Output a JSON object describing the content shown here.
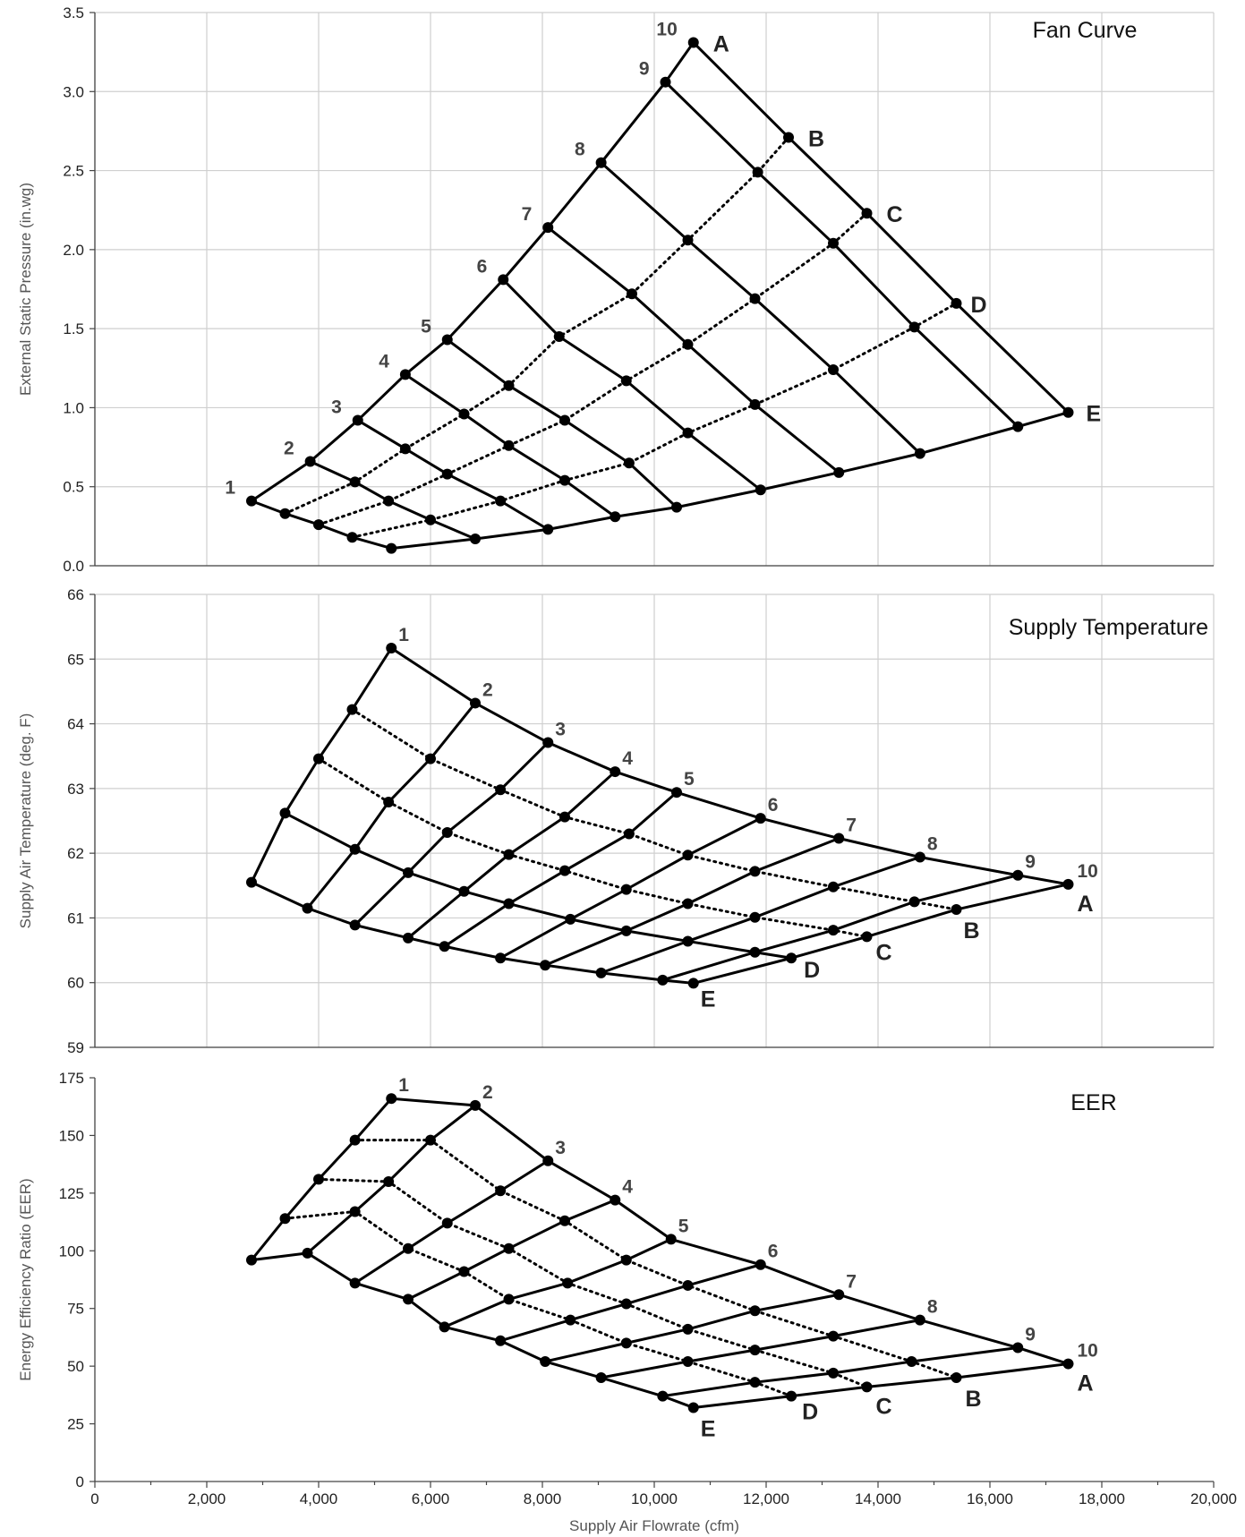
{
  "chart_data": [
    {
      "type": "line",
      "title": "Fan Curve",
      "ylabel": "External Static Pressure (in.wg)",
      "xlabel": "",
      "xlim": [
        0,
        20000
      ],
      "ylim": [
        0,
        3.5
      ],
      "yticks": [
        "0.0",
        "0.5",
        "1.0",
        "1.5",
        "2.0",
        "2.5",
        "3.0",
        "3.5"
      ],
      "grid": true,
      "row_labels": [
        "A",
        "B",
        "C",
        "D",
        "E"
      ],
      "column_labels": [
        "1",
        "2",
        "3",
        "4",
        "5",
        "6",
        "7",
        "8",
        "9",
        "10"
      ],
      "grid_points": {
        "A": [
          [
            2800,
            0.41
          ],
          [
            3850,
            0.66
          ],
          [
            4700,
            0.92
          ],
          [
            5550,
            1.21
          ],
          [
            6300,
            1.43
          ],
          [
            7300,
            1.81
          ],
          [
            8100,
            2.14
          ],
          [
            9050,
            2.55
          ],
          [
            10200,
            3.06
          ],
          [
            10700,
            3.31
          ]
        ],
        "B": [
          [
            3400,
            0.33
          ],
          [
            4650,
            0.53
          ],
          [
            5550,
            0.74
          ],
          [
            6600,
            0.96
          ],
          [
            7400,
            1.14
          ],
          [
            8300,
            1.45
          ],
          [
            9600,
            1.72
          ],
          [
            10600,
            2.06
          ],
          [
            11850,
            2.49
          ],
          [
            12400,
            2.71
          ]
        ],
        "C": [
          [
            4000,
            0.26
          ],
          [
            5250,
            0.41
          ],
          [
            6300,
            0.58
          ],
          [
            7400,
            0.76
          ],
          [
            8400,
            0.92
          ],
          [
            9500,
            1.17
          ],
          [
            10600,
            1.4
          ],
          [
            11800,
            1.69
          ],
          [
            13200,
            2.04
          ],
          [
            13800,
            2.23
          ]
        ],
        "D": [
          [
            4600,
            0.18
          ],
          [
            6000,
            0.29
          ],
          [
            7250,
            0.41
          ],
          [
            8400,
            0.54
          ],
          [
            9550,
            0.65
          ],
          [
            10600,
            0.84
          ],
          [
            11800,
            1.02
          ],
          [
            13200,
            1.24
          ],
          [
            14650,
            1.51
          ],
          [
            15400,
            1.66
          ]
        ],
        "E": [
          [
            5300,
            0.11
          ],
          [
            6800,
            0.17
          ],
          [
            8100,
            0.23
          ],
          [
            9300,
            0.31
          ],
          [
            10400,
            0.37
          ],
          [
            11900,
            0.48
          ],
          [
            13300,
            0.59
          ],
          [
            14750,
            0.71
          ],
          [
            16500,
            0.88
          ],
          [
            17400,
            0.97
          ]
        ]
      },
      "column_line_style": "solid",
      "row_line_styles": {
        "A": "solid",
        "B": "dotted",
        "C": "dotted",
        "D": "dotted",
        "E": "solid"
      }
    },
    {
      "type": "line",
      "title": "Supply Temperature",
      "ylabel": "Supply Air Temperature (deg. F)",
      "xlabel": "",
      "xlim": [
        0,
        20000
      ],
      "ylim": [
        59,
        66
      ],
      "yticks": [
        "59",
        "60",
        "61",
        "62",
        "63",
        "64",
        "65",
        "66"
      ],
      "grid": true,
      "row_labels": [
        "A",
        "B",
        "C",
        "D",
        "E"
      ],
      "column_labels": [
        "1",
        "2",
        "3",
        "4",
        "5",
        "6",
        "7",
        "8",
        "9",
        "10"
      ],
      "grid_points": {
        "A": [
          [
            5300,
            65.17
          ],
          [
            6800,
            64.32
          ],
          [
            8100,
            63.71
          ],
          [
            9300,
            63.26
          ],
          [
            10400,
            62.94
          ],
          [
            11900,
            62.54
          ],
          [
            13300,
            62.23
          ],
          [
            14750,
            61.94
          ],
          [
            16500,
            61.66
          ],
          [
            17400,
            61.52
          ]
        ],
        "B": [
          [
            4600,
            64.22
          ],
          [
            6000,
            63.46
          ],
          [
            7250,
            62.98
          ],
          [
            8400,
            62.56
          ],
          [
            9550,
            62.3
          ],
          [
            10600,
            61.97
          ],
          [
            11800,
            61.72
          ],
          [
            13200,
            61.48
          ],
          [
            14650,
            61.25
          ],
          [
            15400,
            61.13
          ]
        ],
        "C": [
          [
            4000,
            63.46
          ],
          [
            5250,
            62.79
          ],
          [
            6300,
            62.32
          ],
          [
            7400,
            61.98
          ],
          [
            8400,
            61.73
          ],
          [
            9500,
            61.44
          ],
          [
            10600,
            61.22
          ],
          [
            11800,
            61.01
          ],
          [
            13200,
            60.81
          ],
          [
            13800,
            60.71
          ]
        ],
        "D": [
          [
            3400,
            62.62
          ],
          [
            4650,
            62.06
          ],
          [
            5600,
            61.7
          ],
          [
            6600,
            61.41
          ],
          [
            7400,
            61.22
          ],
          [
            8500,
            60.98
          ],
          [
            9500,
            60.8
          ],
          [
            10600,
            60.64
          ],
          [
            11800,
            60.47
          ],
          [
            12450,
            60.38
          ]
        ],
        "E": [
          [
            2800,
            61.55
          ],
          [
            3800,
            61.15
          ],
          [
            4650,
            60.89
          ],
          [
            5600,
            60.69
          ],
          [
            6250,
            60.56
          ],
          [
            7250,
            60.38
          ],
          [
            8050,
            60.27
          ],
          [
            9050,
            60.15
          ],
          [
            10150,
            60.04
          ],
          [
            10700,
            59.99
          ]
        ]
      },
      "column_line_style": "solid",
      "row_line_styles": {
        "A": "solid",
        "B": "dotted",
        "C": "dotted",
        "D": "solid",
        "E": "solid"
      }
    },
    {
      "type": "line",
      "title": "EER",
      "ylabel": "Energy Efficiency Ratio (EER)",
      "xlabel": "Supply Air Flowrate (cfm)",
      "xlim": [
        0,
        20000
      ],
      "ylim": [
        0,
        175
      ],
      "xticks": [
        "0",
        "2,000",
        "4,000",
        "6,000",
        "8,000",
        "10,000",
        "12,000",
        "14,000",
        "16,000",
        "18,000",
        "20,000"
      ],
      "yticks": [
        "0",
        "25",
        "50",
        "75",
        "100",
        "125",
        "150",
        "175"
      ],
      "grid": false,
      "row_labels": [
        "A",
        "B",
        "C",
        "D",
        "E"
      ],
      "column_labels": [
        "1",
        "2",
        "3",
        "4",
        "5",
        "6",
        "7",
        "8",
        "9",
        "10"
      ],
      "grid_points": {
        "A": [
          [
            5300,
            166
          ],
          [
            6800,
            163
          ],
          [
            8100,
            139
          ],
          [
            9300,
            122
          ],
          [
            10300,
            105
          ],
          [
            11900,
            94
          ],
          [
            13300,
            81
          ],
          [
            14750,
            70
          ],
          [
            16500,
            58
          ],
          [
            17400,
            51
          ]
        ],
        "B": [
          [
            4650,
            148
          ],
          [
            6000,
            148
          ],
          [
            7250,
            126
          ],
          [
            8400,
            113
          ],
          [
            9500,
            96
          ],
          [
            10600,
            85
          ],
          [
            11800,
            74
          ],
          [
            13200,
            63
          ],
          [
            14600,
            52
          ],
          [
            15400,
            45
          ]
        ],
        "C": [
          [
            4000,
            131
          ],
          [
            5250,
            130
          ],
          [
            6300,
            112
          ],
          [
            7400,
            101
          ],
          [
            8450,
            86
          ],
          [
            9500,
            77
          ],
          [
            10600,
            66
          ],
          [
            11800,
            57
          ],
          [
            13200,
            47
          ],
          [
            13800,
            41
          ]
        ],
        "D": [
          [
            3400,
            114
          ],
          [
            4650,
            117
          ],
          [
            5600,
            101
          ],
          [
            6600,
            91
          ],
          [
            7400,
            79
          ],
          [
            8500,
            70
          ],
          [
            9500,
            60
          ],
          [
            10600,
            52
          ],
          [
            11800,
            43
          ],
          [
            12450,
            37
          ]
        ],
        "E": [
          [
            2800,
            96
          ],
          [
            3800,
            99
          ],
          [
            4650,
            86
          ],
          [
            5600,
            79
          ],
          [
            6250,
            67
          ],
          [
            7250,
            61
          ],
          [
            8050,
            52
          ],
          [
            9050,
            45
          ],
          [
            10150,
            37
          ],
          [
            10700,
            32
          ]
        ]
      },
      "column_line_style": "solid",
      "row_line_styles": {
        "A": "solid",
        "B": "dotted",
        "C": "dotted",
        "D": "dotted",
        "E": "solid"
      }
    }
  ]
}
